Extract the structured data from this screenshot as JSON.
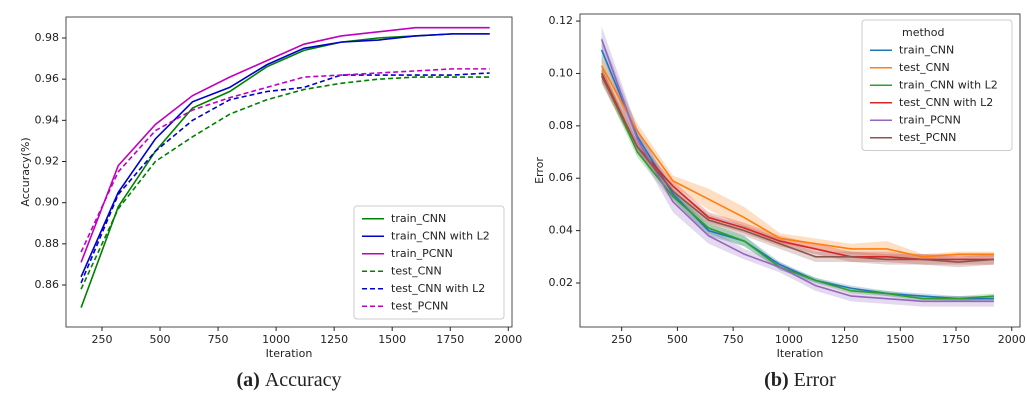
{
  "chart_data": [
    {
      "type": "line",
      "caption_label": "(a)",
      "caption": "Accuracy",
      "xlabel": "Iteration",
      "ylabel": "Accuracy(%)",
      "x": [
        160,
        320,
        480,
        640,
        800,
        960,
        1120,
        1280,
        1440,
        1600,
        1760,
        1920
      ],
      "xlim": [
        95,
        2016
      ],
      "xticks": [
        250,
        500,
        750,
        1000,
        1250,
        1500,
        1750,
        2000
      ],
      "ylim": [
        0.8396,
        0.9902
      ],
      "yticks": [
        0.86,
        0.88,
        {
          "value": 0.9,
          "label": "0.90"
        },
        0.92,
        0.94,
        0.96,
        0.98
      ],
      "legend": "lower right",
      "series": [
        {
          "name": "train_CNN",
          "color": "#008000",
          "dash": false,
          "values": [
            0.849,
            0.898,
            0.925,
            0.946,
            0.954,
            0.966,
            0.974,
            0.978,
            0.98,
            0.981,
            0.982,
            0.982
          ]
        },
        {
          "name": "train_CNN with L2",
          "color": "#0000cc",
          "dash": false,
          "values": [
            0.864,
            0.905,
            0.931,
            0.949,
            0.956,
            0.967,
            0.975,
            0.978,
            0.979,
            0.981,
            0.982,
            0.982
          ]
        },
        {
          "name": "train_PCNN",
          "color": "#bf00bf",
          "dash": false,
          "values": [
            0.871,
            0.918,
            0.938,
            0.952,
            0.961,
            0.969,
            0.977,
            0.981,
            0.983,
            0.985,
            0.985,
            0.985
          ]
        },
        {
          "name": "test_CNN",
          "color": "#008000",
          "dash": true,
          "values": [
            0.858,
            0.897,
            0.92,
            0.932,
            0.943,
            0.95,
            0.955,
            0.958,
            0.96,
            0.961,
            0.961,
            0.961
          ]
        },
        {
          "name": "test_CNN with L2",
          "color": "#0000cc",
          "dash": true,
          "values": [
            0.861,
            0.904,
            0.925,
            0.94,
            0.95,
            0.954,
            0.956,
            0.962,
            0.962,
            0.962,
            0.962,
            0.963
          ]
        },
        {
          "name": "test_PCNN",
          "color": "#bf00bf",
          "dash": true,
          "values": [
            0.876,
            0.915,
            0.935,
            0.945,
            0.951,
            0.956,
            0.961,
            0.962,
            0.963,
            0.964,
            0.965,
            0.965
          ]
        }
      ]
    },
    {
      "type": "line",
      "caption_label": "(b)",
      "caption": "Error",
      "xlabel": "Iteration",
      "ylabel": "Error",
      "x": [
        160,
        320,
        480,
        640,
        800,
        960,
        1120,
        1280,
        1440,
        1600,
        1760,
        1920
      ],
      "xlim": [
        63,
        2037
      ],
      "xticks": [
        250,
        500,
        750,
        1000,
        1250,
        1500,
        1750,
        2000
      ],
      "ylim": [
        0.0032,
        0.1227
      ],
      "yticks": [
        0.02,
        0.04,
        0.06,
        0.08,
        {
          "value": 0.1,
          "label": "0.10"
        },
        0.12
      ],
      "legend": "upper right",
      "legend_title": "method",
      "series": [
        {
          "name": "train_CNN",
          "color": "#1f77b4",
          "dash": false,
          "values": [
            0.109,
            0.076,
            0.054,
            0.04,
            0.036,
            0.027,
            0.021,
            0.018,
            0.016,
            0.015,
            0.014,
            0.014
          ],
          "lower": [
            0.104,
            0.073,
            0.052,
            0.038,
            0.034,
            0.025,
            0.02,
            0.017,
            0.015,
            0.014,
            0.013,
            0.013
          ],
          "upper": [
            0.114,
            0.079,
            0.056,
            0.042,
            0.038,
            0.028,
            0.022,
            0.019,
            0.017,
            0.016,
            0.015,
            0.015
          ]
        },
        {
          "name": "test_CNN",
          "color": "#ff7f0e",
          "dash": false,
          "values": [
            0.103,
            0.078,
            0.059,
            0.052,
            0.045,
            0.037,
            0.035,
            0.033,
            0.033,
            0.03,
            0.031,
            0.031
          ],
          "lower": [
            0.099,
            0.075,
            0.057,
            0.048,
            0.041,
            0.035,
            0.033,
            0.031,
            0.03,
            0.029,
            0.03,
            0.03
          ],
          "upper": [
            0.107,
            0.081,
            0.061,
            0.056,
            0.049,
            0.039,
            0.037,
            0.035,
            0.036,
            0.031,
            0.032,
            0.032
          ]
        },
        {
          "name": "train_CNN with L2",
          "color": "#2ca02c",
          "dash": false,
          "values": [
            0.1,
            0.07,
            0.053,
            0.041,
            0.036,
            0.026,
            0.021,
            0.017,
            0.016,
            0.014,
            0.014,
            0.015
          ],
          "lower": [
            0.097,
            0.068,
            0.051,
            0.039,
            0.034,
            0.025,
            0.02,
            0.016,
            0.015,
            0.013,
            0.013,
            0.014
          ],
          "upper": [
            0.103,
            0.072,
            0.055,
            0.043,
            0.038,
            0.027,
            0.022,
            0.018,
            0.017,
            0.015,
            0.015,
            0.016
          ]
        },
        {
          "name": "test_CNN with L2",
          "color": "#d62728",
          "dash": false,
          "values": [
            0.1,
            0.072,
            0.057,
            0.045,
            0.041,
            0.036,
            0.033,
            0.03,
            0.03,
            0.029,
            0.029,
            0.029
          ],
          "lower": [
            0.097,
            0.07,
            0.055,
            0.043,
            0.039,
            0.034,
            0.031,
            0.028,
            0.028,
            0.027,
            0.027,
            0.027
          ],
          "upper": [
            0.103,
            0.074,
            0.059,
            0.047,
            0.043,
            0.038,
            0.035,
            0.032,
            0.032,
            0.031,
            0.031,
            0.031
          ]
        },
        {
          "name": "train_PCNN",
          "color": "#9467bd",
          "dash": false,
          "values": [
            0.113,
            0.075,
            0.051,
            0.038,
            0.031,
            0.026,
            0.019,
            0.015,
            0.014,
            0.013,
            0.013,
            0.013
          ],
          "lower": [
            0.108,
            0.071,
            0.047,
            0.035,
            0.029,
            0.024,
            0.017,
            0.013,
            0.012,
            0.011,
            0.011,
            0.011
          ],
          "upper": [
            0.118,
            0.079,
            0.055,
            0.041,
            0.033,
            0.028,
            0.021,
            0.017,
            0.016,
            0.015,
            0.015,
            0.015
          ]
        },
        {
          "name": "test_PCNN",
          "color": "#8c564b",
          "dash": false,
          "values": [
            0.099,
            0.072,
            0.055,
            0.044,
            0.04,
            0.035,
            0.03,
            0.03,
            0.029,
            0.029,
            0.028,
            0.029
          ],
          "lower": [
            0.096,
            0.07,
            0.053,
            0.042,
            0.038,
            0.033,
            0.028,
            0.028,
            0.027,
            0.027,
            0.026,
            0.027
          ],
          "upper": [
            0.102,
            0.074,
            0.057,
            0.046,
            0.042,
            0.037,
            0.032,
            0.032,
            0.031,
            0.031,
            0.03,
            0.031
          ]
        }
      ]
    }
  ]
}
